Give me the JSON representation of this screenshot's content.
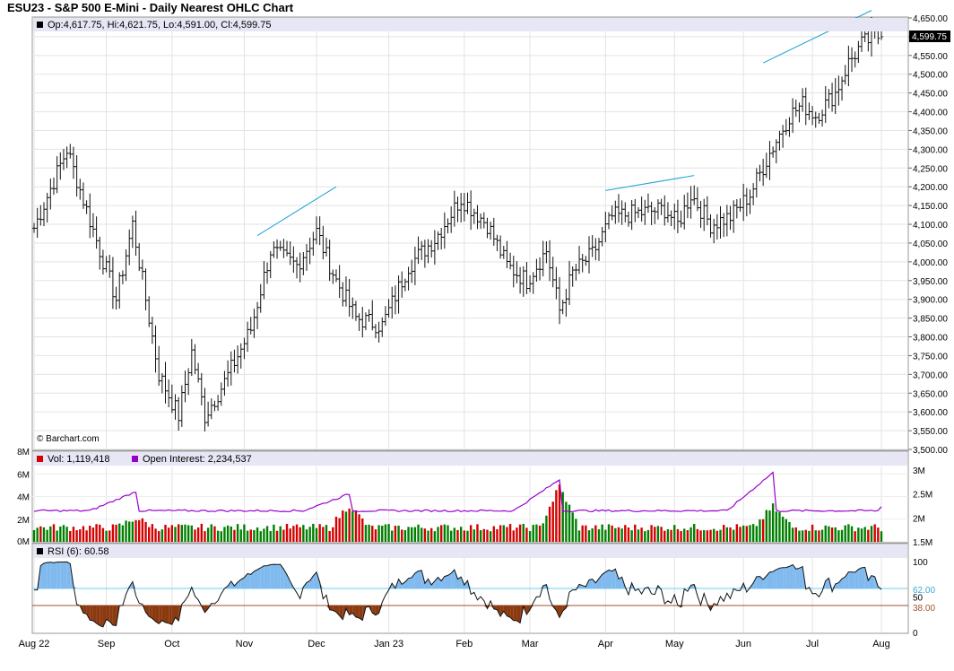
{
  "header": {
    "title": "ESU23 - S&P 500 E-Mini - Daily Nearest OHLC Chart"
  },
  "price_panel": {
    "legend": "Op:4,617.75, Hi:4,621.75, Lo:4,591.00, Cl:4,599.75",
    "last_price_label": "4,599.75",
    "watermark": "© Barchart.com"
  },
  "volume_panel": {
    "vol_legend": "Vol: 1,119,418",
    "oi_legend": "Open Interest: 2,234,537"
  },
  "rsi_panel": {
    "legend": "RSI (6): 60.58",
    "upper_level_label": "62.00",
    "lower_level_label": "38.00"
  },
  "colors": {
    "up_volume": "#008000",
    "down_volume": "#d40000",
    "open_interest": "#9900cc",
    "trendline": "#1aa0d8",
    "rsi_fill_up": "#7fb9ee",
    "rsi_fill_down": "#8b3a10",
    "rsi_upper_line": "#6ecff0",
    "rsi_lower_line": "#a0522d",
    "legend_bg": "#e6e6f5"
  },
  "chart_data": [
    {
      "type": "ohlc",
      "title": "ESU23 - S&P 500 E-Mini - Daily Nearest OHLC Chart",
      "ylim": [
        3500,
        4650
      ],
      "y_ticks": [
        "4,650.00",
        "4,600.00",
        "4,550.00",
        "4,500.00",
        "4,450.00",
        "4,400.00",
        "4,350.00",
        "4,300.00",
        "4,250.00",
        "4,200.00",
        "4,150.00",
        "4,100.00",
        "4,050.00",
        "4,000.00",
        "3,950.00",
        "3,900.00",
        "3,850.00",
        "3,800.00",
        "3,750.00",
        "3,700.00",
        "3,650.00",
        "3,600.00",
        "3,550.00",
        "3,500.00"
      ],
      "x_tick_labels": [
        "Aug 22",
        "Sep",
        "Oct",
        "Nov",
        "Dec",
        "Jan 23",
        "Feb",
        "Mar",
        "Apr",
        "May",
        "Jun",
        "Jul",
        "Aug"
      ],
      "x_tick_days": [
        0,
        22,
        42,
        64,
        86,
        108,
        131,
        151,
        174,
        195,
        216,
        237,
        258
      ],
      "last_bar": {
        "open": 4617.75,
        "high": 4621.75,
        "low": 4591.0,
        "close": 4599.75
      },
      "key_points": [
        {
          "day": 0,
          "close": 4090
        },
        {
          "day": 10,
          "close": 4300
        },
        {
          "day": 20,
          "close": 4030
        },
        {
          "day": 25,
          "close": 3900
        },
        {
          "day": 30,
          "close": 4100
        },
        {
          "day": 38,
          "close": 3700
        },
        {
          "day": 44,
          "close": 3590
        },
        {
          "day": 48,
          "close": 3760
        },
        {
          "day": 52,
          "close": 3590
        },
        {
          "day": 58,
          "close": 3680
        },
        {
          "day": 66,
          "close": 3820
        },
        {
          "day": 72,
          "close": 4030
        },
        {
          "day": 80,
          "close": 3990
        },
        {
          "day": 86,
          "close": 4080
        },
        {
          "day": 92,
          "close": 3950
        },
        {
          "day": 98,
          "close": 3850
        },
        {
          "day": 106,
          "close": 3830
        },
        {
          "day": 114,
          "close": 3990
        },
        {
          "day": 122,
          "close": 4060
        },
        {
          "day": 130,
          "close": 4170
        },
        {
          "day": 138,
          "close": 4100
        },
        {
          "day": 144,
          "close": 3990
        },
        {
          "day": 150,
          "close": 3950
        },
        {
          "day": 156,
          "close": 4030
        },
        {
          "day": 160,
          "close": 3870
        },
        {
          "day": 164,
          "close": 3970
        },
        {
          "day": 170,
          "close": 4020
        },
        {
          "day": 176,
          "close": 4120
        },
        {
          "day": 184,
          "close": 4130
        },
        {
          "day": 192,
          "close": 4140
        },
        {
          "day": 196,
          "close": 4100
        },
        {
          "day": 200,
          "close": 4180
        },
        {
          "day": 206,
          "close": 4100
        },
        {
          "day": 212,
          "close": 4120
        },
        {
          "day": 218,
          "close": 4180
        },
        {
          "day": 224,
          "close": 4290
        },
        {
          "day": 230,
          "close": 4390
        },
        {
          "day": 234,
          "close": 4420
        },
        {
          "day": 238,
          "close": 4390
        },
        {
          "day": 244,
          "close": 4450
        },
        {
          "day": 248,
          "close": 4530
        },
        {
          "day": 252,
          "close": 4580
        },
        {
          "day": 256,
          "close": 4600
        },
        {
          "day": 258,
          "close": 4600
        }
      ],
      "trendlines": [
        {
          "from": {
            "day": 68,
            "price": 4070
          },
          "to": {
            "day": 92,
            "price": 4200
          }
        },
        {
          "from": {
            "day": 174,
            "price": 4190
          },
          "to": {
            "day": 201,
            "price": 4230
          }
        },
        {
          "from": {
            "day": 222,
            "price": 4530
          },
          "to": {
            "day": 255,
            "price": 4670
          }
        }
      ]
    },
    {
      "type": "bar",
      "name": "Volume",
      "ylim": [
        0,
        8000000
      ],
      "left_ticks": [
        "8M",
        "6M",
        "4M",
        "2M",
        "0M"
      ],
      "right_ticks": [
        "3M",
        "2.5M",
        "2M",
        "1.5M"
      ],
      "last_volume": 1119418,
      "last_open_interest": 2234537,
      "contract_roll_spikes": [
        {
          "day": 31,
          "volume": 2600000,
          "open_interest": 2550000
        },
        {
          "day": 96,
          "volume": 4000000,
          "open_interest": 2500000
        },
        {
          "day": 160,
          "volume": 6000000,
          "open_interest": 2800000
        },
        {
          "day": 225,
          "volume": 3800000,
          "open_interest": 2950000
        }
      ],
      "typical_volume": 1600000,
      "typical_open_interest": 2150000
    },
    {
      "type": "line",
      "name": "RSI (6)",
      "ylim": [
        0,
        100
      ],
      "ticks": [
        "100",
        "50",
        "0"
      ],
      "levels": [
        62,
        38
      ],
      "last_value": 60.58
    }
  ]
}
